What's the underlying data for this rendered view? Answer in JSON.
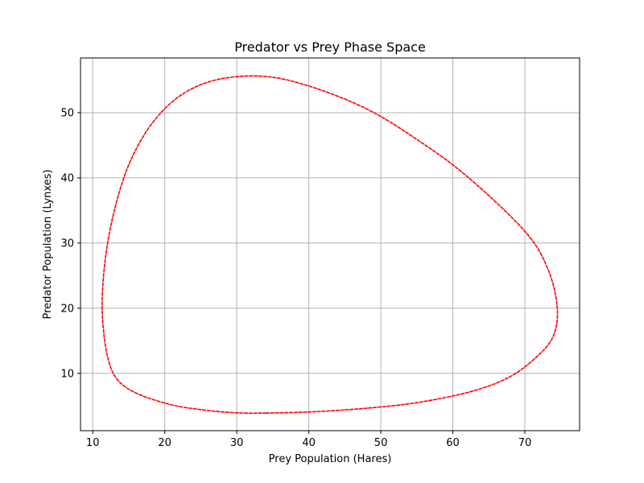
{
  "chart_data": {
    "type": "line",
    "title": "Predator vs Prey Phase Space",
    "xlabel": "Prey Population (Hares)",
    "ylabel": "Predator Population (Lynxes)",
    "xlim": [
      8.3,
      77.6
    ],
    "ylim": [
      1.2,
      58.4
    ],
    "xticks": [
      10,
      20,
      30,
      40,
      50,
      60,
      70
    ],
    "yticks": [
      10,
      20,
      30,
      40,
      50
    ],
    "grid": true,
    "series": [
      {
        "color": "#ff0000",
        "linestyle": "dashed",
        "x": [
          34.0,
          40.5,
          47.5,
          55.0,
          62.5,
          67.8,
          71.5,
          73.9,
          74.5,
          73.2,
          70.0,
          62.0,
          55.0,
          48.0,
          40.0,
          33.5,
          27.0,
          22.0,
          18.0,
          15.0,
          13.0,
          11.8,
          11.3,
          11.6,
          12.3,
          13.3,
          14.8,
          16.8,
          19.2,
          21.6,
          24.5,
          27.8,
          31.0,
          34.0
        ],
        "y": [
          3.9,
          4.1,
          4.6,
          5.5,
          7.2,
          9.4,
          12.4,
          15.6,
          20.0,
          26.0,
          31.8,
          40.2,
          45.9,
          50.6,
          54.1,
          55.6,
          55.0,
          52.5,
          48.0,
          42.0,
          35.0,
          28.0,
          21.0,
          15.5,
          11.5,
          9.2,
          7.7,
          6.6,
          5.7,
          5.0,
          4.5,
          4.1,
          3.9,
          3.9
        ]
      }
    ]
  }
}
